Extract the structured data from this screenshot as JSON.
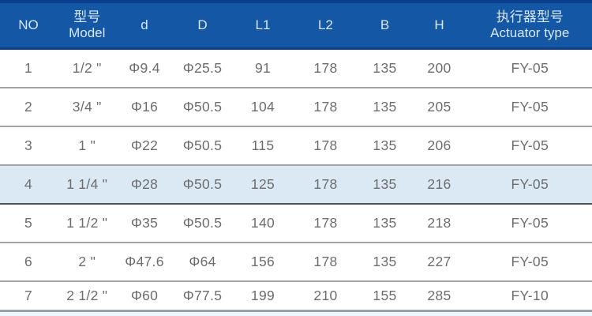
{
  "colors": {
    "header_bg": "#1457a5",
    "header_top_strip": "#0c3f8e",
    "header_text": "#d9e8f7",
    "row_text": "#6d6d6d",
    "row_divider": "#a3a3a3",
    "highlight_row_bg": "#dbe9f5",
    "highlight_row_divider": "#4f4f4f",
    "table_bottom_line": "#9aa1a7",
    "bottom_strip_bg": "#eef5fb",
    "body_bg": "#ffffff"
  },
  "table": {
    "name": "valve-actuator-specification-table",
    "columns": [
      {
        "id": "no",
        "label": "NO"
      },
      {
        "id": "model",
        "label": "型号\nModel"
      },
      {
        "id": "d",
        "label": "d"
      },
      {
        "id": "D",
        "label": "D"
      },
      {
        "id": "L1",
        "label": "L1"
      },
      {
        "id": "L2",
        "label": "L2"
      },
      {
        "id": "B",
        "label": "B"
      },
      {
        "id": "H",
        "label": "H"
      },
      {
        "id": "actuator",
        "label": "执行器型号\nActuator type"
      }
    ],
    "rows": [
      [
        "1",
        "1/2 \"",
        "Φ9.4",
        "Φ25.5",
        "91",
        "178",
        "135",
        "200",
        "FY-05"
      ],
      [
        "2",
        "3/4 \"",
        "Φ16",
        "Φ50.5",
        "104",
        "178",
        "135",
        "205",
        "FY-05"
      ],
      [
        "3",
        "1 \"",
        "Φ22",
        "Φ50.5",
        "115",
        "178",
        "135",
        "206",
        "FY-05"
      ],
      [
        "4",
        "1 1/4 \"",
        "Φ28",
        "Φ50.5",
        "125",
        "178",
        "135",
        "216",
        "FY-05"
      ],
      [
        "5",
        "1 1/2 \"",
        "Φ35",
        "Φ50.5",
        "140",
        "178",
        "135",
        "218",
        "FY-05"
      ],
      [
        "6",
        "2 \"",
        "Φ47.6",
        "Φ64",
        "156",
        "178",
        "135",
        "227",
        "FY-05"
      ],
      [
        "7",
        "2 1/2 \"",
        "Φ60",
        "Φ77.5",
        "199",
        "210",
        "155",
        "285",
        "FY-10"
      ]
    ],
    "highlighted_row_no": "4"
  }
}
